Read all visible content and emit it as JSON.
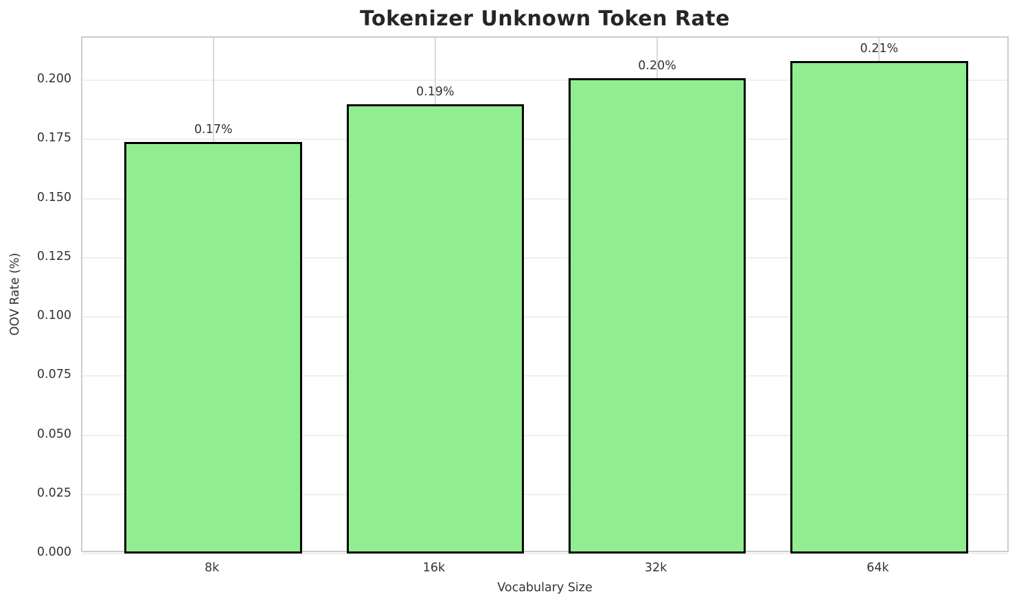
{
  "chart_data": {
    "type": "bar",
    "title": "Tokenizer Unknown Token Rate",
    "xlabel": "Vocabulary Size",
    "ylabel": "OOV Rate (%)",
    "categories": [
      "8k",
      "16k",
      "32k",
      "64k"
    ],
    "values": [
      0.174,
      0.19,
      0.201,
      0.208
    ],
    "bar_labels": [
      "0.17%",
      "0.19%",
      "0.20%",
      "0.21%"
    ],
    "yticks": [
      0.0,
      0.025,
      0.05,
      0.075,
      0.1,
      0.125,
      0.15,
      0.175,
      0.2
    ],
    "ytick_labels": [
      "0.000",
      "0.025",
      "0.050",
      "0.075",
      "0.100",
      "0.125",
      "0.150",
      "0.175",
      "0.200"
    ],
    "ylim": [
      0,
      0.218
    ],
    "xlim": [
      -0.59,
      3.59
    ],
    "bar_width": 0.8,
    "bar_color": "#90EE90",
    "bar_edge_color": "#000000",
    "grid": true,
    "legend": null
  }
}
